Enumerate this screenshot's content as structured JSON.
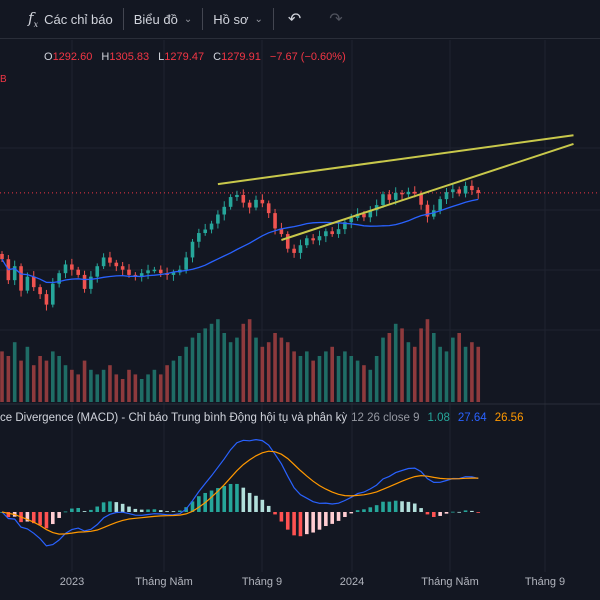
{
  "toolbar": {
    "indicators_label": "Các chỉ báo",
    "chart_label": "Biểu đồ",
    "profile_label": "Hồ sơ"
  },
  "ohlc": {
    "o_key": "O",
    "o": "1292.60",
    "h_key": "H",
    "h": "1305.83",
    "l_key": "L",
    "l": "1279.47",
    "c_key": "C",
    "c": "1279.91",
    "change": "−7.67 (−0.60%)"
  },
  "left_marker": "B",
  "macd_legend": {
    "name": "ce Divergence (MACD) - Chỉ báo Trung bình Động hội tụ và phân kỳ",
    "params": "12 26 close 9",
    "hist": "1.08",
    "macd": "27.64",
    "signal": "26.56"
  },
  "colors": {
    "up": "#26a69a",
    "down": "#ef5350",
    "ma": "#2962ff",
    "trendline": "#c8c84b",
    "signal": "#ff9800",
    "macd": "#2962ff"
  },
  "x_axis": {
    "labels": [
      "2023",
      "Tháng Năm",
      "Tháng 9",
      "2024",
      "Tháng Năm",
      "Tháng 9"
    ]
  },
  "chart_data": {
    "type": "candlestick",
    "close": [
      1090,
      1030,
      1070,
      1000,
      1040,
      1010,
      990,
      960,
      1020,
      1050,
      1075,
      1060,
      1045,
      1005,
      1040,
      1070,
      1095,
      1080,
      1070,
      1060,
      1045,
      1040,
      1050,
      1058,
      1060,
      1050,
      1045,
      1052,
      1060,
      1095,
      1140,
      1165,
      1175,
      1192,
      1218,
      1240,
      1268,
      1274,
      1252,
      1238,
      1260,
      1250,
      1222,
      1178,
      1162,
      1120,
      1108,
      1130,
      1150,
      1144,
      1156,
      1170,
      1162,
      1176,
      1196,
      1208,
      1220,
      1210,
      1230,
      1245,
      1276,
      1260,
      1280,
      1276,
      1283,
      1278,
      1246,
      1212,
      1230,
      1262,
      1282,
      1290,
      1278,
      1300,
      1288,
      1279.91
    ],
    "volume": [
      0.55,
      0.5,
      0.65,
      0.45,
      0.6,
      0.4,
      0.5,
      0.45,
      0.55,
      0.5,
      0.4,
      0.35,
      0.3,
      0.45,
      0.35,
      0.3,
      0.35,
      0.4,
      0.3,
      0.25,
      0.35,
      0.3,
      0.25,
      0.3,
      0.35,
      0.3,
      0.4,
      0.45,
      0.5,
      0.6,
      0.7,
      0.75,
      0.8,
      0.85,
      0.9,
      0.75,
      0.65,
      0.7,
      0.85,
      0.9,
      0.7,
      0.6,
      0.65,
      0.75,
      0.7,
      0.65,
      0.55,
      0.5,
      0.55,
      0.45,
      0.5,
      0.55,
      0.6,
      0.5,
      0.55,
      0.5,
      0.45,
      0.4,
      0.35,
      0.5,
      0.7,
      0.75,
      0.85,
      0.8,
      0.65,
      0.6,
      0.8,
      0.9,
      0.75,
      0.6,
      0.55,
      0.7,
      0.75,
      0.6,
      0.65,
      0.6
    ],
    "ma_period": 20,
    "macd_fast": 12,
    "macd_slow": 26,
    "macd_signal": 9,
    "trendlines": [
      {
        "from": [
          34,
          1305
        ],
        "to": [
          90,
          1445
        ]
      },
      {
        "from": [
          44,
          1145
        ],
        "to": [
          90,
          1420
        ]
      }
    ]
  }
}
